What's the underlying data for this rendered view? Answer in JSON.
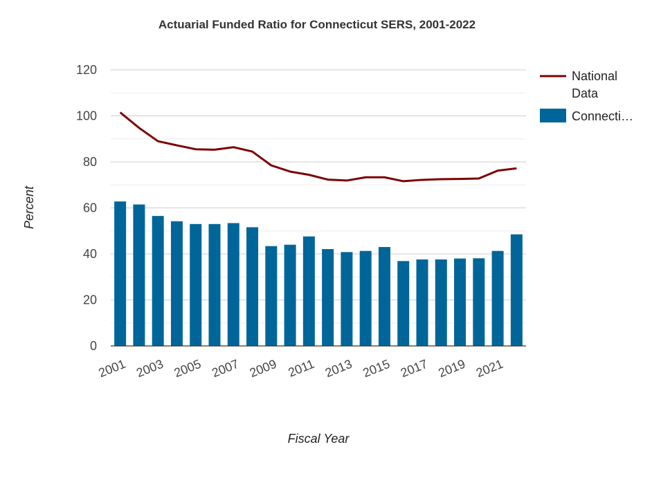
{
  "chart_data": {
    "type": "bar",
    "title": "Actuarial Funded Ratio for Connecticut SERS, 2001-2022",
    "xlabel": "Fiscal Year",
    "ylabel": "Percent",
    "ylim": [
      0,
      120
    ],
    "yticks": [
      0,
      20,
      40,
      60,
      80,
      100,
      120
    ],
    "grid": true,
    "legend_position": "right",
    "categories": [
      "2001",
      "2002",
      "2003",
      "2004",
      "2005",
      "2006",
      "2007",
      "2008",
      "2009",
      "2010",
      "2011",
      "2012",
      "2013",
      "2014",
      "2015",
      "2016",
      "2017",
      "2018",
      "2019",
      "2020",
      "2021",
      "2022"
    ],
    "x_tick_labels": [
      "2001",
      "2003",
      "2005",
      "2007",
      "2009",
      "2011",
      "2013",
      "2015",
      "2017",
      "2019",
      "2021"
    ],
    "series": [
      {
        "name": "National Data",
        "type": "line",
        "color": "#7b0000",
        "values": [
          101.5,
          94.8,
          89.0,
          87.2,
          85.5,
          85.3,
          86.4,
          84.5,
          78.5,
          75.8,
          74.4,
          72.3,
          71.9,
          73.3,
          73.3,
          71.6,
          72.2,
          72.5,
          72.6,
          72.8,
          76.2,
          77.2
        ]
      },
      {
        "name": "Connecti…",
        "type": "bar",
        "color": "#006699",
        "values": [
          62.8,
          61.5,
          56.5,
          54.2,
          53.0,
          53.0,
          53.4,
          51.6,
          43.4,
          44.0,
          47.6,
          42.1,
          40.8,
          41.3,
          43.0,
          36.9,
          37.6,
          37.6,
          38.0,
          38.1,
          41.3,
          48.5
        ]
      }
    ]
  }
}
